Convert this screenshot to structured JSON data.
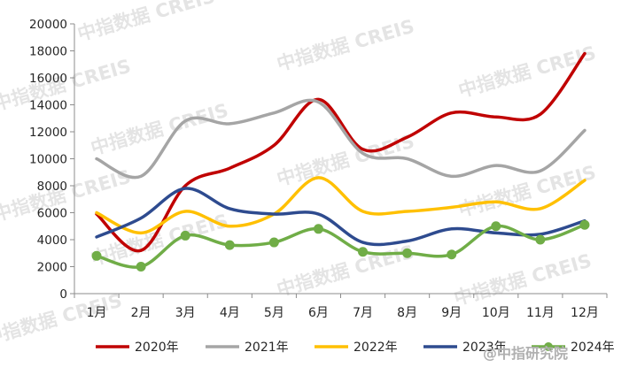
{
  "watermark": {
    "text": "中指数据 CREIS",
    "account": "@中指研究院"
  },
  "chart_data": {
    "type": "line",
    "title": "",
    "xlabel": "",
    "ylabel": "",
    "categories": [
      "1月",
      "2月",
      "3月",
      "4月",
      "5月",
      "6月",
      "7月",
      "8月",
      "9月",
      "10月",
      "11月",
      "12月"
    ],
    "ylim": [
      0,
      20000
    ],
    "yticks": [
      0,
      2000,
      4000,
      6000,
      8000,
      10000,
      12000,
      14000,
      16000,
      18000,
      20000
    ],
    "grid": false,
    "legend_position": "bottom",
    "series": [
      {
        "name": "2020年",
        "color": "#c00000",
        "markers": false,
        "values": [
          5900,
          3200,
          8000,
          9300,
          11000,
          14400,
          10700,
          11600,
          13400,
          13100,
          13300,
          17800
        ]
      },
      {
        "name": "2021年",
        "color": "#a5a5a5",
        "markers": false,
        "values": [
          10000,
          8700,
          12800,
          12600,
          13400,
          14200,
          10400,
          10000,
          8700,
          9500,
          9100,
          12100
        ]
      },
      {
        "name": "2022年",
        "color": "#ffc000",
        "markers": false,
        "values": [
          6000,
          4500,
          6100,
          5000,
          5900,
          8600,
          6100,
          6100,
          6400,
          6800,
          6300,
          8400
        ]
      },
      {
        "name": "2023年",
        "color": "#2e4b8f",
        "markers": false,
        "values": [
          4200,
          5600,
          7800,
          6300,
          5900,
          5900,
          3800,
          3900,
          4800,
          4500,
          4400,
          5400
        ]
      },
      {
        "name": "2024年",
        "color": "#70ad47",
        "markers": true,
        "values": [
          2800,
          2000,
          4300,
          3600,
          3800,
          4800,
          3100,
          3000,
          2900,
          5000,
          4000,
          5100
        ]
      }
    ]
  }
}
